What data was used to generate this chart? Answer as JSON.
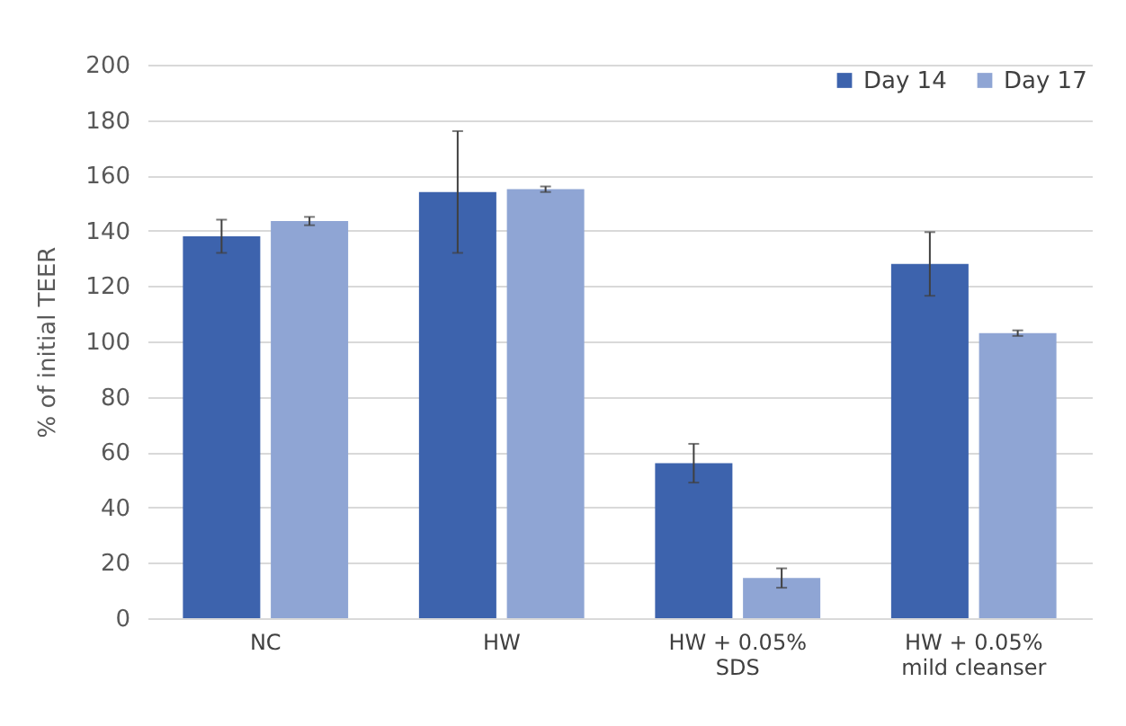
{
  "chart_data": {
    "type": "bar",
    "ylabel": "% of initial TEER",
    "categories": [
      "NC",
      "HW",
      "HW + 0.05%\nSDS",
      "HW + 0.05%\nmild cleanser"
    ],
    "series": [
      {
        "name": "Day 14",
        "color": "#3d63ad",
        "values": [
          138,
          154,
          56,
          128
        ],
        "errors": [
          6,
          22,
          7,
          11.5
        ]
      },
      {
        "name": "Day 17",
        "color": "#8fa5d4",
        "values": [
          143.5,
          155,
          14.5,
          103
        ],
        "errors": [
          1.5,
          1,
          3.5,
          1
        ]
      }
    ],
    "ylim": [
      0,
      200
    ],
    "yticks": [
      0,
      20,
      40,
      60,
      80,
      100,
      120,
      140,
      160,
      180,
      200
    ],
    "grid": "y",
    "legend": "top right"
  }
}
